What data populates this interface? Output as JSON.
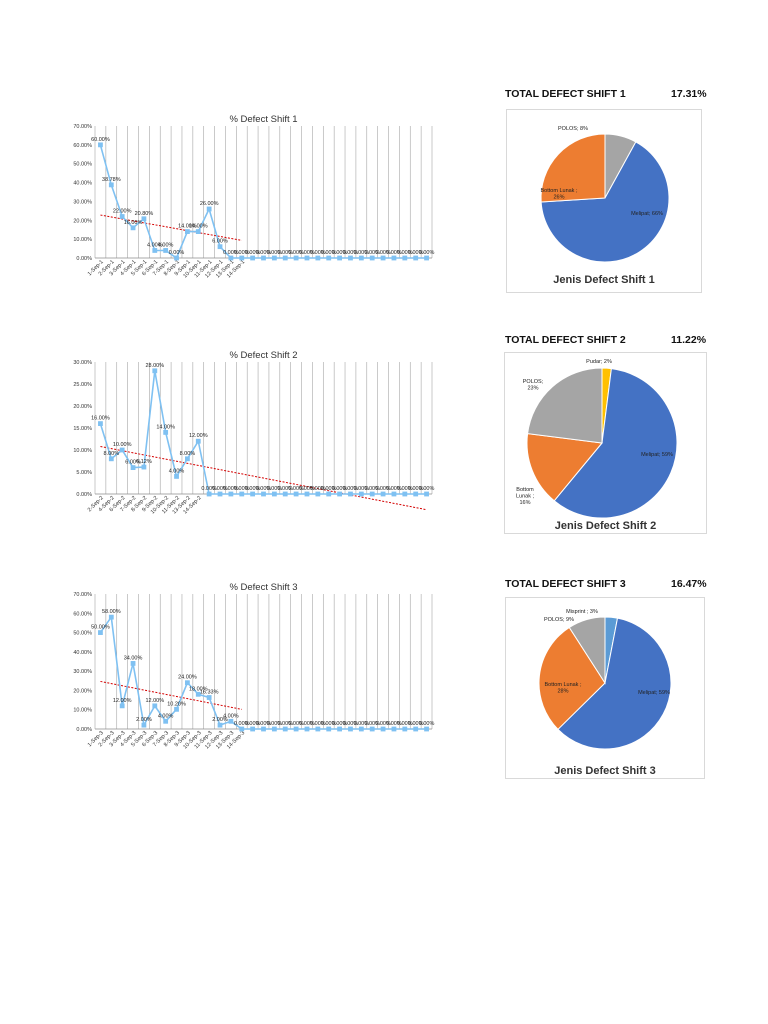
{
  "colors": {
    "line": "#7fc1f2",
    "marker": "#7fc1f2",
    "trend": "#d40000",
    "grid": "#a6a6a6",
    "melipat": "#4472c4",
    "bottom_lunak": "#ed7d31",
    "polos": "#a5a5a5",
    "pudar": "#ffc000",
    "misprint": "#5b9bd5"
  },
  "totals": [
    {
      "label": "TOTAL DEFECT SHIFT 1",
      "value": "17.31%"
    },
    {
      "label": "TOTAL DEFECT SHIFT 2",
      "value": "11.22%"
    },
    {
      "label": "TOTAL DEFECT SHIFT 3",
      "value": "16.47%"
    }
  ],
  "chart_data": [
    {
      "type": "line",
      "title": "% Defect Shift 1",
      "ylim": [
        0,
        70
      ],
      "yticks": [
        "0.00%",
        "10.00%",
        "20.00%",
        "30.00%",
        "40.00%",
        "50.00%",
        "60.00%",
        "70.00%"
      ],
      "categories": [
        "1-Sep-1",
        "2-Sep-1",
        "3-Sep-1",
        "4-Sep-1",
        "5-Sep-1",
        "6-Sep-1",
        "7-Sep-1",
        "8-Sep-1",
        "9-Sep-1",
        "10-Sep-1",
        "11-Sep-1",
        "12-Sep-1",
        "13-Sep-1",
        "14-Sep-1"
      ],
      "values": [
        60,
        38.78,
        22,
        16,
        20.8,
        4,
        4,
        0,
        14,
        14,
        26,
        6,
        0,
        0,
        0,
        0,
        0,
        0,
        0,
        0,
        0,
        0,
        0,
        0,
        0,
        0,
        0,
        0,
        0,
        0,
        0
      ],
      "labels": [
        "60.00%",
        "38.78%",
        "22.00%",
        "16.00%",
        "20.80%",
        "4.00%",
        "4.00%",
        "0.00%",
        "14.00%",
        "14.00%",
        "26.00%",
        "6.00%",
        "0.00%",
        "0.00%",
        "0.00%",
        "0.00%",
        "0.00%",
        "0.00%",
        "0.00%",
        "0.00%",
        "0.00%",
        "0.00%",
        "0.00%",
        "0.00%",
        "0.00%",
        "0.00%",
        "0.00%",
        "0.00%",
        "0.00%",
        "0.00%",
        "0.00%"
      ],
      "trendline": {
        "type": "linear",
        "visible_points": 14
      }
    },
    {
      "type": "line",
      "title": "% Defect Shift 2",
      "ylim": [
        0,
        30
      ],
      "yticks": [
        "0.00%",
        "5.00%",
        "10.00%",
        "15.00%",
        "20.00%",
        "25.00%",
        "30.00%"
      ],
      "categories": [
        "2-Sep-2",
        "4-Sep-2",
        "6-Sep-2",
        "7-Sep-2",
        "8-Sep-2",
        "9-Sep-2",
        "10-Sep-2",
        "11-Sep-2",
        "13-Sep-2",
        "14-Sep-2"
      ],
      "values": [
        16,
        8,
        10,
        6,
        6.12,
        28,
        14,
        4,
        8,
        12,
        0,
        0,
        0,
        0,
        0,
        0,
        0,
        0,
        0,
        0,
        0,
        0,
        0,
        0,
        0,
        0,
        0,
        0,
        0,
        0,
        0
      ],
      "labels": [
        "16.00%",
        "8.00%",
        "10.00%",
        "6.00%",
        "6.12%",
        "28.00%",
        "14.00%",
        "4.00%",
        "8.00%",
        "12.00%",
        "0.00%",
        "0.00%",
        "0.00%",
        "0.00%",
        "0.00%",
        "0.00%",
        "0.00%",
        "0.00%",
        "0.00%",
        "0.00%",
        "0.00%",
        "0.00%",
        "0.00%",
        "0.00%",
        "0.00%",
        "0.00%",
        "0.00%",
        "0.00%",
        "0.00%",
        "0.00%",
        "0.00%"
      ],
      "trendline": {
        "type": "linear",
        "visible_points": 31
      }
    },
    {
      "type": "line",
      "title": "% Defect Shift 3",
      "ylim": [
        0,
        70
      ],
      "yticks": [
        "0.00%",
        "10.00%",
        "20.00%",
        "30.00%",
        "40.00%",
        "50.00%",
        "60.00%",
        "70.00%"
      ],
      "categories": [
        "1-Sep-3",
        "2-Sep-3",
        "3-Sep-3",
        "4-Sep-3",
        "5-Sep-3",
        "6-Sep-3",
        "7-Sep-3",
        "8-Sep-3",
        "9-Sep-3",
        "10-Sep-3",
        "11-Sep-3",
        "12-Sep-3",
        "13-Sep-3",
        "14-Sep-3"
      ],
      "values": [
        50,
        58,
        12,
        34,
        2,
        12,
        4,
        10.2,
        24,
        18,
        16.33,
        2,
        4,
        0,
        0,
        0,
        0,
        0,
        0,
        0,
        0,
        0,
        0,
        0,
        0,
        0,
        0,
        0,
        0,
        0,
        0
      ],
      "labels": [
        "50.00%",
        "58.00%",
        "12.00%",
        "34.00%",
        "2.00%",
        "12.00%",
        "4.00%",
        "10.20%",
        "24.00%",
        "18.00%",
        "16.33%",
        "2.00%",
        "4.00%",
        "0.00%",
        "0.00%",
        "0.00%",
        "0.00%",
        "0.00%",
        "0.00%",
        "0.00%",
        "0.00%",
        "0.00%",
        "0.00%",
        "0.00%",
        "0.00%",
        "0.00%",
        "0.00%",
        "0.00%",
        "0.00%",
        "0.00%",
        "0.00%"
      ],
      "trendline": {
        "type": "linear",
        "visible_points": 14
      }
    },
    {
      "type": "pie",
      "title": "Jenis Defect Shift 1",
      "slices": [
        {
          "name": "POLOS",
          "value": 8,
          "label": "POLOS; 8%",
          "color": "#a5a5a5"
        },
        {
          "name": "Melipat",
          "value": 66,
          "label": "Melipat; 66%",
          "color": "#4472c4"
        },
        {
          "name": "Bottom Lunak",
          "value": 26,
          "label": "Bottom Lunak ; 26%",
          "color": "#ed7d31"
        }
      ]
    },
    {
      "type": "pie",
      "title": "Jenis Defect Shift 2",
      "slices": [
        {
          "name": "Pudar",
          "value": 2,
          "label": "Pudar; 2%",
          "color": "#ffc000"
        },
        {
          "name": "Melipat",
          "value": 59,
          "label": "Melipat; 59%",
          "color": "#4472c4"
        },
        {
          "name": "Bottom Lunak",
          "value": 16,
          "label": "Bottom Lunak ; 16%",
          "color": "#ed7d31"
        },
        {
          "name": "POLOS",
          "value": 23,
          "label": "POLOS; 23%",
          "color": "#a5a5a5"
        }
      ]
    },
    {
      "type": "pie",
      "title": "Jenis Defect Shift 3",
      "slices": [
        {
          "name": "Misprint",
          "value": 3,
          "label": "Misprint ; 3%",
          "color": "#5b9bd5"
        },
        {
          "name": "Melipat",
          "value": 59,
          "label": "Melipat; 59%",
          "color": "#4472c4"
        },
        {
          "name": "Bottom Lunak",
          "value": 28,
          "label": "Bottom Lunak ; 28%",
          "color": "#ed7d31"
        },
        {
          "name": "POLOS",
          "value": 9,
          "label": "POLOS; 9%",
          "color": "#a5a5a5"
        }
      ]
    }
  ]
}
